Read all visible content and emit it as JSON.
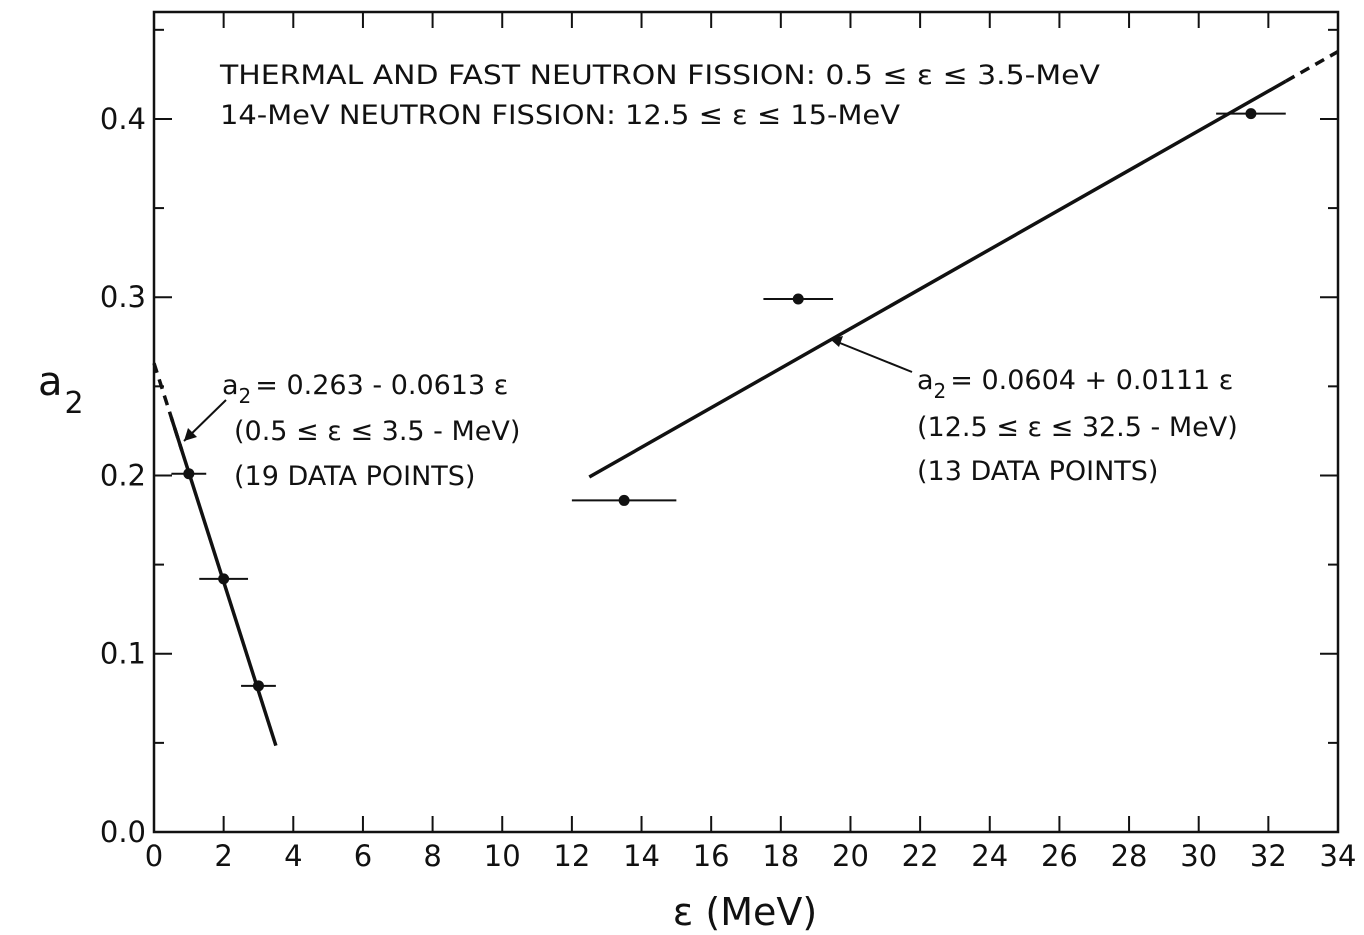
{
  "chart_data": {
    "type": "scatter",
    "xlabel": "ε (MeV)",
    "ylabel_main": "a",
    "ylabel_sub": "2",
    "xlim": [
      0,
      34
    ],
    "ylim": [
      0.0,
      0.46
    ],
    "x_ticks": [
      0,
      2,
      4,
      6,
      8,
      10,
      12,
      14,
      16,
      18,
      20,
      22,
      24,
      26,
      28,
      30,
      32,
      34
    ],
    "x_tick_labels": [
      "0",
      "2",
      "4",
      "6",
      "8",
      "10",
      "12",
      "14",
      "16",
      "18",
      "20",
      "22",
      "24",
      "26",
      "28",
      "30",
      "32",
      "34"
    ],
    "y_ticks": [
      0.0,
      0.1,
      0.2,
      0.3,
      0.4
    ],
    "y_tick_labels": [
      "0.0",
      "0.1",
      "0.2",
      "0.3",
      "0.4"
    ],
    "grid": false,
    "header_lines": [
      "THERMAL AND FAST NEUTRON FISSION: 0.5 ≤ ε ≤ 3.5-MeV",
      "14-MeV NEUTRON FISSION: 12.5 ≤ ε ≤ 15-MeV"
    ],
    "series": [
      {
        "points": [
          {
            "x": 1.0,
            "y": 0.201,
            "xerr": 0.5
          },
          {
            "x": 2.0,
            "y": 0.142,
            "xerr": 0.7
          },
          {
            "x": 3.0,
            "y": 0.082,
            "xerr": 0.5
          }
        ],
        "fit": {
          "intercept": 0.263,
          "slope": -0.0613,
          "solid_range": [
            0.5,
            3.5
          ],
          "dashed_range": [
            0.0,
            0.8
          ],
          "label": "= 0.263 - 0.0613 ε",
          "range_label": "(0.5 ≤ ε ≤ 3.5 - MeV)",
          "points_label": "(19 DATA POINTS)"
        }
      },
      {
        "points": [
          {
            "x": 13.5,
            "y": 0.186,
            "xerr": 1.5
          },
          {
            "x": 18.5,
            "y": 0.299,
            "xerr": 1.0
          },
          {
            "x": 31.5,
            "y": 0.403,
            "xerr": 1.0
          }
        ],
        "fit": {
          "intercept": 0.0604,
          "slope": 0.0111,
          "solid_range": [
            12.5,
            32.5
          ],
          "dashed_range": [
            32.5,
            34.0
          ],
          "label": "= 0.0604 + 0.0111 ε",
          "range_label": "(12.5 ≤ ε ≤ 32.5 - MeV)",
          "points_label": "(13 DATA POINTS)"
        }
      }
    ]
  }
}
